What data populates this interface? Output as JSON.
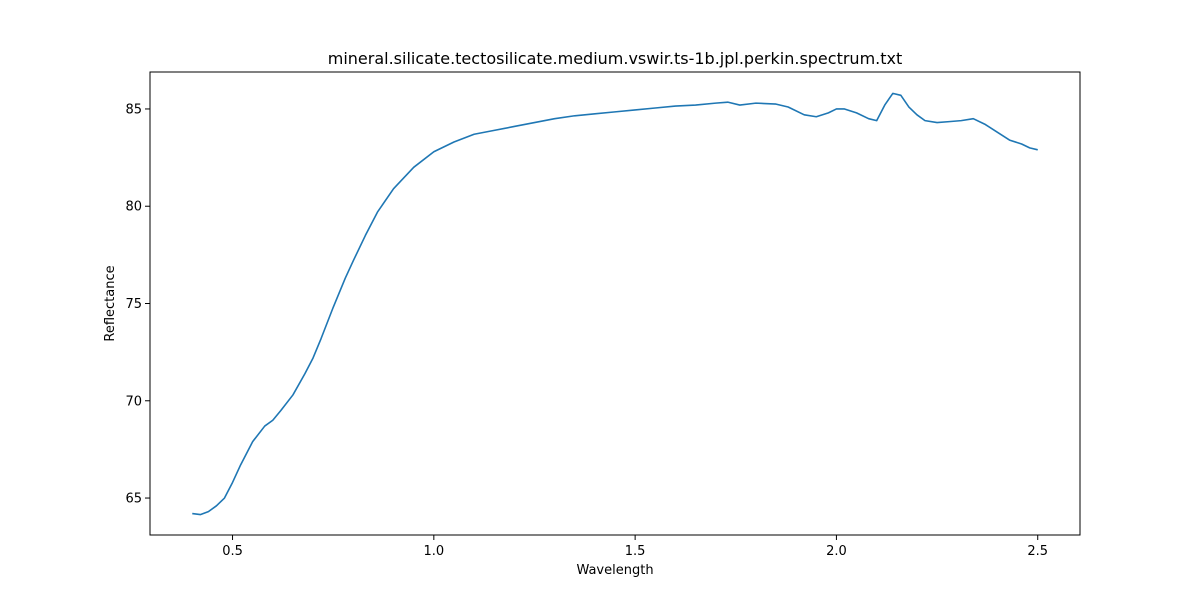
{
  "chart_data": {
    "type": "line",
    "title": "mineral.silicate.tectosilicate.medium.vswir.ts-1b.jpl.perkin.spectrum.txt",
    "xlabel": "Wavelength",
    "ylabel": "Reflectance",
    "xlim": [
      0.295,
      2.605
    ],
    "ylim": [
      63.1,
      86.9
    ],
    "xticks": [
      0.5,
      1.0,
      1.5,
      2.0,
      2.5
    ],
    "xtick_labels": [
      "0.5",
      "1.0",
      "1.5",
      "2.0",
      "2.5"
    ],
    "yticks": [
      65,
      70,
      75,
      80,
      85
    ],
    "ytick_labels": [
      "65",
      "70",
      "75",
      "80",
      "85"
    ],
    "grid": false,
    "series": [
      {
        "color": "#1f77b4",
        "x": [
          0.4,
          0.42,
          0.44,
          0.46,
          0.48,
          0.5,
          0.52,
          0.55,
          0.58,
          0.6,
          0.62,
          0.65,
          0.68,
          0.7,
          0.72,
          0.75,
          0.78,
          0.8,
          0.83,
          0.86,
          0.9,
          0.95,
          1.0,
          1.05,
          1.1,
          1.15,
          1.2,
          1.25,
          1.3,
          1.35,
          1.4,
          1.45,
          1.5,
          1.55,
          1.6,
          1.65,
          1.7,
          1.73,
          1.76,
          1.8,
          1.85,
          1.88,
          1.92,
          1.95,
          1.98,
          2.0,
          2.02,
          2.05,
          2.08,
          2.1,
          2.12,
          2.14,
          2.16,
          2.18,
          2.2,
          2.22,
          2.25,
          2.28,
          2.31,
          2.34,
          2.37,
          2.4,
          2.43,
          2.46,
          2.48,
          2.5
        ],
        "y": [
          64.2,
          64.15,
          64.3,
          64.6,
          65.0,
          65.8,
          66.7,
          67.9,
          68.7,
          69.0,
          69.5,
          70.3,
          71.4,
          72.2,
          73.2,
          74.8,
          76.3,
          77.2,
          78.5,
          79.7,
          80.9,
          82.0,
          82.8,
          83.3,
          83.7,
          83.9,
          84.1,
          84.3,
          84.5,
          84.65,
          84.75,
          84.85,
          84.95,
          85.05,
          85.15,
          85.2,
          85.3,
          85.35,
          85.2,
          85.3,
          85.25,
          85.1,
          84.7,
          84.6,
          84.8,
          85.0,
          85.0,
          84.8,
          84.5,
          84.4,
          85.2,
          85.8,
          85.7,
          85.1,
          84.7,
          84.4,
          84.3,
          84.35,
          84.4,
          84.5,
          84.2,
          83.8,
          83.4,
          83.2,
          83.0,
          82.9
        ]
      }
    ]
  }
}
